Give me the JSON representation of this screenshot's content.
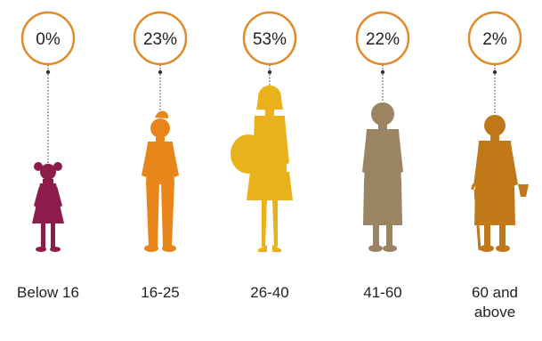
{
  "chart_data": {
    "type": "pictograph",
    "title": "",
    "categories": [
      "Below 16",
      "16-25",
      "26-40",
      "41-60",
      "60 and above"
    ],
    "category_label_lines": [
      [
        "Below 16"
      ],
      [
        "16-25"
      ],
      [
        "26-40"
      ],
      [
        "41-60"
      ],
      [
        "60 and",
        "above"
      ]
    ],
    "values": [
      0,
      23,
      53,
      22,
      2
    ],
    "value_labels": [
      "0%",
      "23%",
      "53%",
      "22%",
      "2%"
    ],
    "unit": "%",
    "circle_color": "#e08a2a",
    "figure_colors": [
      "#8c1d4a",
      "#e8861c",
      "#e9b21a",
      "#9b8462",
      "#c07818"
    ],
    "figure_icons": [
      "girl-child-icon",
      "teen-boy-icon",
      "woman-with-bag-icon",
      "older-woman-icon",
      "elderly-woman-with-cane-icon"
    ]
  }
}
